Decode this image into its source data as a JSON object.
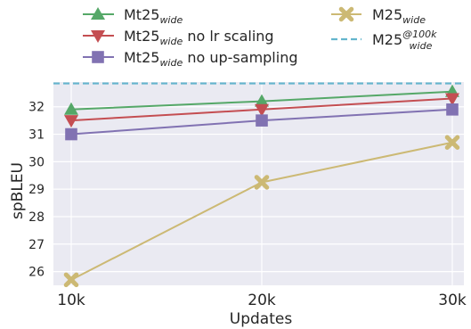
{
  "chart_data": {
    "type": "line",
    "xlabel": "Updates",
    "ylabel": "spBLEU",
    "categories": [
      "10k",
      "20k",
      "30k"
    ],
    "x": [
      10,
      20,
      30
    ],
    "ylim": [
      25.5,
      32.9
    ],
    "yticks": [
      26,
      27,
      28,
      29,
      30,
      31,
      32
    ],
    "grid": true,
    "legend_placement": "above plot, two columns",
    "series": [
      {
        "name": "Mt25",
        "name_sub": "wide",
        "name_suffix": "",
        "color": "#55a868",
        "marker": "triangle-up",
        "values": [
          31.9,
          32.2,
          32.55
        ]
      },
      {
        "name": "Mt25",
        "name_sub": "wide",
        "name_suffix": " no lr scaling",
        "color": "#c44e52",
        "marker": "triangle-down",
        "values": [
          31.5,
          31.9,
          32.3
        ]
      },
      {
        "name": "Mt25",
        "name_sub": "wide",
        "name_suffix": " no up-sampling",
        "color": "#8172b2",
        "marker": "square",
        "values": [
          31.0,
          31.5,
          31.9
        ]
      },
      {
        "name": "M25",
        "name_sub": "wide",
        "name_suffix": "",
        "color": "#ccb974",
        "marker": "x",
        "values": [
          25.7,
          29.25,
          30.7
        ]
      }
    ],
    "reference_lines": [
      {
        "name": "M25",
        "name_sub": "wide",
        "name_sup": "@100k",
        "color": "#64b5cd",
        "style": "dashed",
        "value": 32.85
      }
    ]
  }
}
